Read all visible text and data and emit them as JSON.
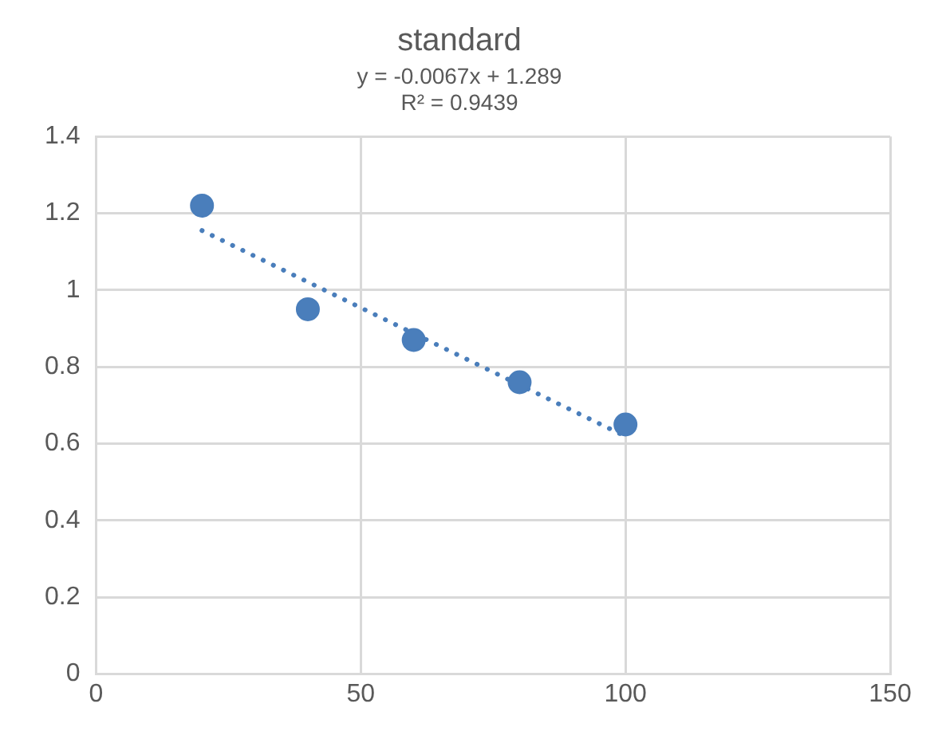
{
  "chart_data": {
    "type": "scatter",
    "title": "standard",
    "annotations": [
      "y = -0.0067x + 1.289",
      "R² = 0.9439"
    ],
    "series": [
      {
        "color": "#4a7ebb",
        "x": [
          20,
          40,
          60,
          80,
          100
        ],
        "values": [
          1.22,
          0.95,
          0.87,
          0.76,
          0.65
        ],
        "marker": "circle"
      },
      {
        "type": "line",
        "color": "#4a7ebb",
        "x": [
          20,
          100
        ],
        "values": [
          1.155,
          0.619
        ],
        "line_style": "dotted",
        "marker": "none"
      }
    ],
    "xlim": [
      0,
      150
    ],
    "xticks": [
      0,
      50,
      100,
      150
    ],
    "ylim": [
      0,
      1.4
    ],
    "yticks": [
      0,
      0.2,
      0.4,
      0.6,
      0.8,
      1,
      1.2,
      1.4
    ],
    "grid": true,
    "legend": false
  }
}
